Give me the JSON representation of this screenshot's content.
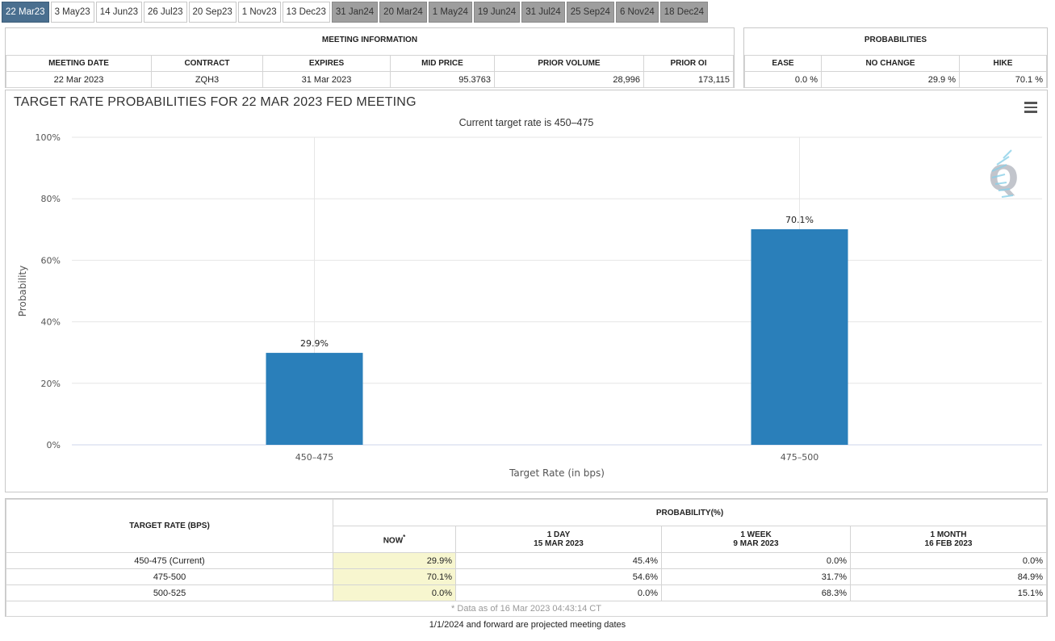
{
  "tabs": [
    {
      "label": "22 Mar23",
      "state": "active"
    },
    {
      "label": "3 May23",
      "state": "normal"
    },
    {
      "label": "14 Jun23",
      "state": "normal"
    },
    {
      "label": "26 Jul23",
      "state": "normal"
    },
    {
      "label": "20 Sep23",
      "state": "normal"
    },
    {
      "label": "1 Nov23",
      "state": "normal"
    },
    {
      "label": "13 Dec23",
      "state": "normal"
    },
    {
      "label": "31 Jan24",
      "state": "future"
    },
    {
      "label": "20 Mar24",
      "state": "future"
    },
    {
      "label": "1 May24",
      "state": "future"
    },
    {
      "label": "19 Jun24",
      "state": "future"
    },
    {
      "label": "31 Jul24",
      "state": "future"
    },
    {
      "label": "25 Sep24",
      "state": "future"
    },
    {
      "label": "6 Nov24",
      "state": "future"
    },
    {
      "label": "18 Dec24",
      "state": "future"
    }
  ],
  "meeting_info": {
    "title": "MEETING INFORMATION",
    "headers": [
      "MEETING DATE",
      "CONTRACT",
      "EXPIRES",
      "MID PRICE",
      "PRIOR VOLUME",
      "PRIOR OI"
    ],
    "values": [
      "22 Mar 2023",
      "ZQH3",
      "31 Mar 2023",
      "95.3763",
      "28,996",
      "173,115"
    ]
  },
  "probabilities": {
    "title": "PROBABILITIES",
    "headers": [
      "EASE",
      "NO CHANGE",
      "HIKE"
    ],
    "values": [
      "0.0 %",
      "29.9 %",
      "70.1 %"
    ]
  },
  "chart": {
    "title": "TARGET RATE PROBABILITIES FOR 22 MAR 2023 FED MEETING",
    "subtitle": "Current target rate is 450–475",
    "watermark": "Q",
    "bar_color": "#2a7fba"
  },
  "chart_data": {
    "type": "bar",
    "categories": [
      "450–475",
      "475–500"
    ],
    "values": [
      29.9,
      70.1
    ],
    "data_labels": [
      "29.9%",
      "70.1%"
    ],
    "xlabel": "Target Rate (in bps)",
    "ylabel": "Probability",
    "ylim": [
      0,
      100
    ],
    "yticks": [
      "0%",
      "20%",
      "40%",
      "60%",
      "80%",
      "100%"
    ],
    "grid": true
  },
  "prob_table": {
    "rate_header": "TARGET RATE (BPS)",
    "group_header": "PROBABILITY(%)",
    "columns": [
      {
        "line1": "NOW",
        "line2": "",
        "marker": "*"
      },
      {
        "line1": "1 DAY",
        "line2": "15 MAR 2023",
        "marker": ""
      },
      {
        "line1": "1 WEEK",
        "line2": "9 MAR 2023",
        "marker": ""
      },
      {
        "line1": "1 MONTH",
        "line2": "16 FEB 2023",
        "marker": ""
      }
    ],
    "rows": [
      {
        "rate": "450-475 (Current)",
        "values": [
          "29.9%",
          "45.4%",
          "0.0%",
          "0.0%"
        ]
      },
      {
        "rate": "475-500",
        "values": [
          "70.1%",
          "54.6%",
          "31.7%",
          "84.9%"
        ]
      },
      {
        "rate": "500-525",
        "values": [
          "0.0%",
          "0.0%",
          "68.3%",
          "15.1%"
        ]
      }
    ],
    "footnote": "* Data as of 16 Mar 2023 04:43:14 CT"
  },
  "bottom_note": "1/1/2024 and forward are projected meeting dates"
}
